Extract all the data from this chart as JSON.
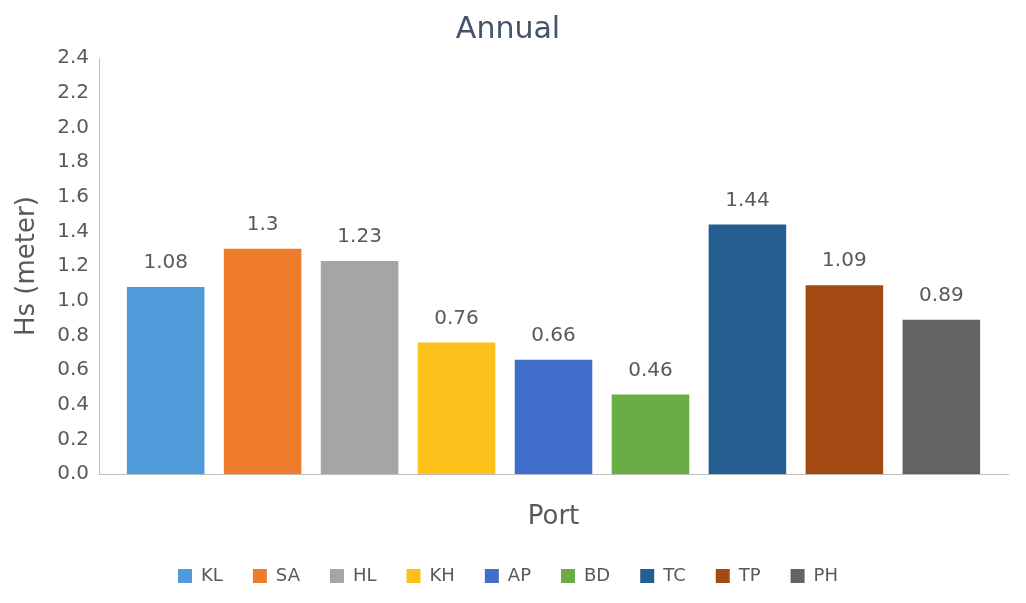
{
  "chart_data": {
    "type": "bar",
    "title": "Annual",
    "xlabel": "Port",
    "ylabel": "Hs (meter)",
    "categories": [
      null
    ],
    "series": [
      {
        "name": "KL",
        "color": "#4f9ad8",
        "values": [
          1.08
        ]
      },
      {
        "name": "SA",
        "color": "#ef7b2c",
        "values": [
          1.3
        ]
      },
      {
        "name": "HL",
        "color": "#a5a5a5",
        "values": [
          1.23
        ]
      },
      {
        "name": "KH",
        "color": "#fcc21b",
        "values": [
          0.76
        ]
      },
      {
        "name": "AP",
        "color": "#3f6fcb",
        "values": [
          0.66
        ]
      },
      {
        "name": "BD",
        "color": "#6aad45",
        "values": [
          0.46
        ]
      },
      {
        "name": "TC",
        "color": "#255e91",
        "values": [
          1.44
        ]
      },
      {
        "name": "TP",
        "color": "#a34a12",
        "values": [
          1.09
        ]
      },
      {
        "name": "PH",
        "color": "#636363",
        "values": [
          0.89
        ]
      }
    ],
    "ylim": [
      0,
      2.4
    ],
    "yticks": [
      {
        "value": 0,
        "label": "0.0"
      },
      {
        "value": 0.2,
        "label": "0.2"
      },
      {
        "value": 0.4,
        "label": "0.4"
      },
      {
        "value": 0.6,
        "label": "0.6"
      },
      {
        "value": 0.8,
        "label": "0.8"
      },
      {
        "value": 1,
        "label": "1.0"
      },
      {
        "value": 1.2,
        "label": "1.2"
      },
      {
        "value": 1.4,
        "label": "1.4"
      },
      {
        "value": 1.6,
        "label": "1.6"
      },
      {
        "value": 1.8,
        "label": "1.8"
      },
      {
        "value": 2,
        "label": "2.0"
      },
      {
        "value": 2.2,
        "label": "2.2"
      },
      {
        "value": 2.4,
        "label": "2.4"
      }
    ],
    "grid": false,
    "legend": "bottom",
    "data_labels": true
  }
}
